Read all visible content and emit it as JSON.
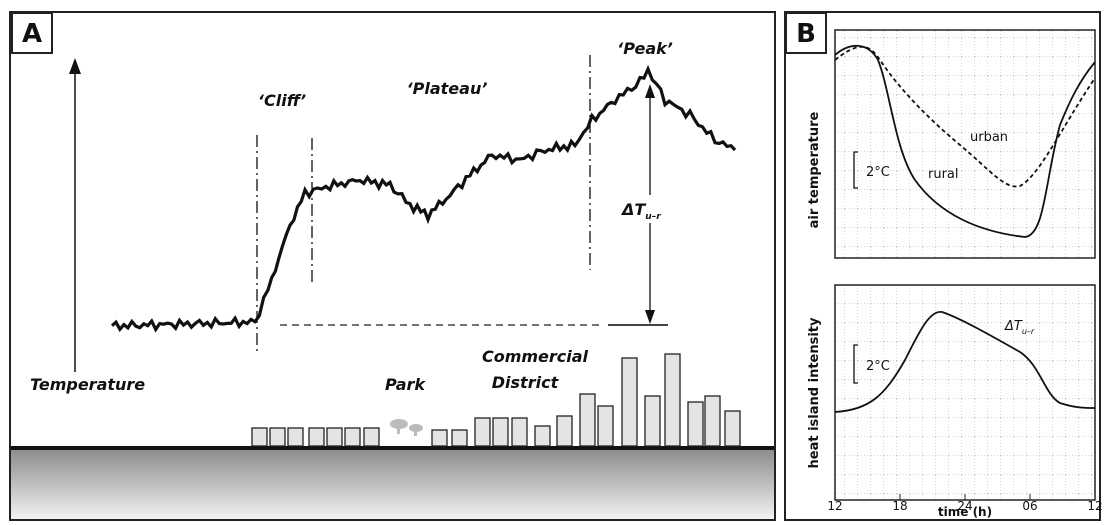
{
  "panel_a": {
    "label": "A",
    "y_axis_label": "Temperature",
    "annotations": {
      "cliff": "‘Cliff’",
      "plateau": "‘Plateau’",
      "peak": "‘Peak’"
    },
    "delta": {
      "symbol": "ΔT",
      "subscript": "u–r"
    },
    "land_use": {
      "park": "Park",
      "commercial": [
        "Commercial",
        "District"
      ]
    }
  },
  "panel_b": {
    "label": "B",
    "top": {
      "y_label": "air temperature",
      "scale": "2°C",
      "urban": "urban",
      "rural": "rural"
    },
    "bottom": {
      "y_label": "heat island intensity",
      "scale": "2°C",
      "delta": {
        "symbol": "ΔT",
        "subscript": "u–r"
      }
    },
    "x_ticks": [
      "12",
      "18",
      "24",
      "06",
      "12"
    ],
    "x_label": "time (h)"
  }
}
